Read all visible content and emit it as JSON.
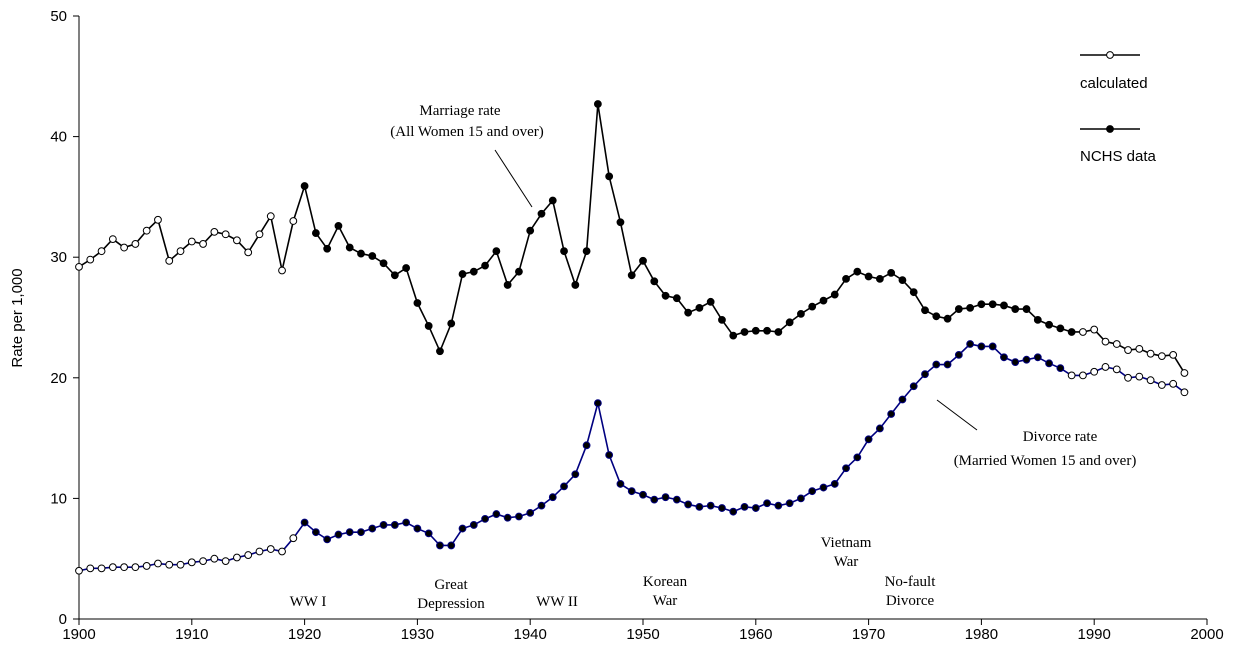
{
  "chart_data": {
    "type": "line",
    "ylabel": "Rate per 1,000",
    "xlim": [
      1900,
      2000
    ],
    "xticks": [
      1900,
      1910,
      1920,
      1930,
      1940,
      1950,
      1960,
      1970,
      1980,
      1990,
      2000
    ],
    "ylim": [
      0,
      50
    ],
    "yticks": [
      0,
      10,
      20,
      30,
      40,
      50
    ],
    "legend": {
      "position": "upper right",
      "entries": [
        {
          "name": "calculated",
          "marker": "open"
        },
        {
          "name": "NCHS data",
          "marker": "filled"
        }
      ]
    },
    "x": [
      1900,
      1901,
      1902,
      1903,
      1904,
      1905,
      1906,
      1907,
      1908,
      1909,
      1910,
      1911,
      1912,
      1913,
      1914,
      1915,
      1916,
      1917,
      1918,
      1919,
      1920,
      1921,
      1922,
      1923,
      1924,
      1925,
      1926,
      1927,
      1928,
      1929,
      1930,
      1931,
      1932,
      1933,
      1934,
      1935,
      1936,
      1937,
      1938,
      1939,
      1940,
      1941,
      1942,
      1943,
      1944,
      1945,
      1946,
      1947,
      1948,
      1949,
      1950,
      1951,
      1952,
      1953,
      1954,
      1955,
      1956,
      1957,
      1958,
      1959,
      1960,
      1961,
      1962,
      1963,
      1964,
      1965,
      1966,
      1967,
      1968,
      1969,
      1970,
      1971,
      1972,
      1973,
      1974,
      1975,
      1976,
      1977,
      1978,
      1979,
      1980,
      1981,
      1982,
      1983,
      1984,
      1985,
      1986,
      1987,
      1988,
      1989,
      1990,
      1991,
      1992,
      1993,
      1994,
      1995,
      1996,
      1997,
      1998
    ],
    "series": [
      {
        "name": "Marriage rate",
        "note": "(All Women 15 and over)",
        "color": "#000000",
        "nchs_years": [
          1920,
          1988
        ],
        "values": [
          29.2,
          29.8,
          30.5,
          31.5,
          30.8,
          31.1,
          32.2,
          33.1,
          29.7,
          30.5,
          31.3,
          31.1,
          32.1,
          31.9,
          31.4,
          30.4,
          31.9,
          33.4,
          28.9,
          33.0,
          35.9,
          32.0,
          30.7,
          32.6,
          30.8,
          30.3,
          30.1,
          29.5,
          28.5,
          29.1,
          26.2,
          24.3,
          22.2,
          24.5,
          28.6,
          28.8,
          29.3,
          30.5,
          27.7,
          28.8,
          32.2,
          33.6,
          34.7,
          30.5,
          27.7,
          30.5,
          42.7,
          36.7,
          32.9,
          28.5,
          29.7,
          28.0,
          26.8,
          26.6,
          25.4,
          25.8,
          26.3,
          24.8,
          23.5,
          23.8,
          23.9,
          23.9,
          23.8,
          24.6,
          25.3,
          25.9,
          26.4,
          26.9,
          28.2,
          28.8,
          28.4,
          28.2,
          28.7,
          28.1,
          27.1,
          25.6,
          25.1,
          24.9,
          25.7,
          25.8,
          26.1,
          26.1,
          26.0,
          25.7,
          25.7,
          24.8,
          24.4,
          24.1,
          23.8,
          23.8,
          24.0,
          23.0,
          22.8,
          22.3,
          22.4,
          22.0,
          21.8,
          21.9,
          20.4
        ]
      },
      {
        "name": "Divorce rate",
        "note": "(Married Women 15 and over)",
        "color": "#000080",
        "nchs_years": [
          1920,
          1987
        ],
        "values": [
          4.0,
          4.2,
          4.2,
          4.3,
          4.3,
          4.3,
          4.4,
          4.6,
          4.5,
          4.5,
          4.7,
          4.8,
          5.0,
          4.8,
          5.1,
          5.3,
          5.6,
          5.8,
          5.6,
          6.7,
          8.0,
          7.2,
          6.6,
          7.0,
          7.2,
          7.2,
          7.5,
          7.8,
          7.8,
          8.0,
          7.5,
          7.1,
          6.1,
          6.1,
          7.5,
          7.8,
          8.3,
          8.7,
          8.4,
          8.5,
          8.8,
          9.4,
          10.1,
          11.0,
          12.0,
          14.4,
          17.9,
          13.6,
          11.2,
          10.6,
          10.3,
          9.9,
          10.1,
          9.9,
          9.5,
          9.3,
          9.4,
          9.2,
          8.9,
          9.3,
          9.2,
          9.6,
          9.4,
          9.6,
          10.0,
          10.6,
          10.9,
          11.2,
          12.5,
          13.4,
          14.9,
          15.8,
          17.0,
          18.2,
          19.3,
          20.3,
          21.1,
          21.1,
          21.9,
          22.8,
          22.6,
          22.6,
          21.7,
          21.3,
          21.5,
          21.7,
          21.2,
          20.8,
          20.2,
          20.2,
          20.5,
          20.9,
          20.7,
          20.0,
          20.1,
          19.8,
          19.4,
          19.5,
          18.8
        ]
      }
    ],
    "annotations": [
      [
        "WW I"
      ],
      [
        "Great",
        "Depression"
      ],
      [
        "WW II"
      ],
      [
        "Korean",
        "War"
      ],
      [
        "Vietnam",
        "War"
      ],
      [
        "No-fault",
        "Divorce"
      ]
    ]
  }
}
